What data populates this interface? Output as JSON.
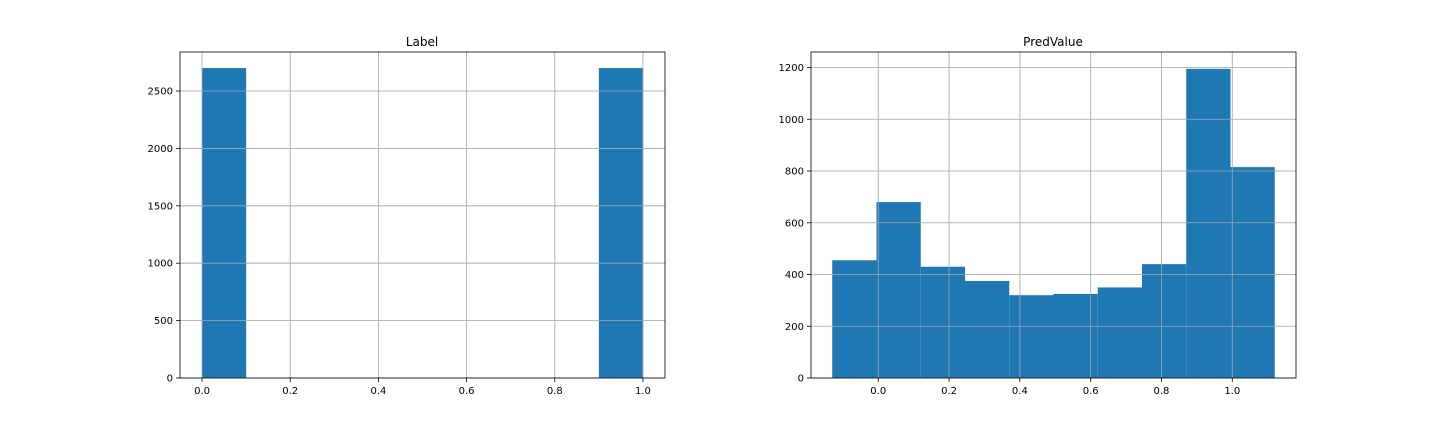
{
  "chart_data": [
    {
      "type": "bar",
      "title": "Label",
      "xlabel": "",
      "ylabel": "",
      "xlim": [
        -0.05,
        1.05
      ],
      "ylim": [
        0,
        2840
      ],
      "grid": true,
      "x_ticks": [
        0.0,
        0.2,
        0.4,
        0.6,
        0.8,
        1.0
      ],
      "x_tick_labels": [
        "0.0",
        "0.2",
        "0.4",
        "0.6",
        "0.8",
        "1.0"
      ],
      "y_ticks": [
        0,
        500,
        1000,
        1500,
        2000,
        2500
      ],
      "y_tick_labels": [
        "0",
        "500",
        "1000",
        "1500",
        "2000",
        "2500"
      ],
      "color": "#1f77b4",
      "bins": [
        {
          "x0": 0.0,
          "x1": 0.1,
          "count": 2700
        },
        {
          "x0": 0.9,
          "x1": 1.0,
          "count": 2700
        }
      ]
    },
    {
      "type": "bar",
      "title": "PredValue",
      "xlabel": "",
      "ylabel": "",
      "xlim": [
        -0.19,
        1.18
      ],
      "ylim": [
        0,
        1260
      ],
      "grid": true,
      "x_ticks": [
        0.0,
        0.2,
        0.4,
        0.6,
        0.8,
        1.0
      ],
      "x_tick_labels": [
        "0.0",
        "0.2",
        "0.4",
        "0.6",
        "0.8",
        "1.0"
      ],
      "y_ticks": [
        0,
        200,
        400,
        600,
        800,
        1000,
        1200
      ],
      "y_tick_labels": [
        "0",
        "200",
        "400",
        "600",
        "800",
        "1000",
        "1200"
      ],
      "color": "#1f77b4",
      "bins": [
        {
          "x0": -0.13,
          "x1": -0.005,
          "count": 455
        },
        {
          "x0": -0.005,
          "x1": 0.12,
          "count": 680
        },
        {
          "x0": 0.12,
          "x1": 0.245,
          "count": 430
        },
        {
          "x0": 0.245,
          "x1": 0.37,
          "count": 375
        },
        {
          "x0": 0.37,
          "x1": 0.495,
          "count": 320
        },
        {
          "x0": 0.495,
          "x1": 0.62,
          "count": 325
        },
        {
          "x0": 0.62,
          "x1": 0.745,
          "count": 350
        },
        {
          "x0": 0.745,
          "x1": 0.87,
          "count": 440
        },
        {
          "x0": 0.87,
          "x1": 0.995,
          "count": 1195
        },
        {
          "x0": 0.995,
          "x1": 1.12,
          "count": 815
        }
      ]
    }
  ]
}
